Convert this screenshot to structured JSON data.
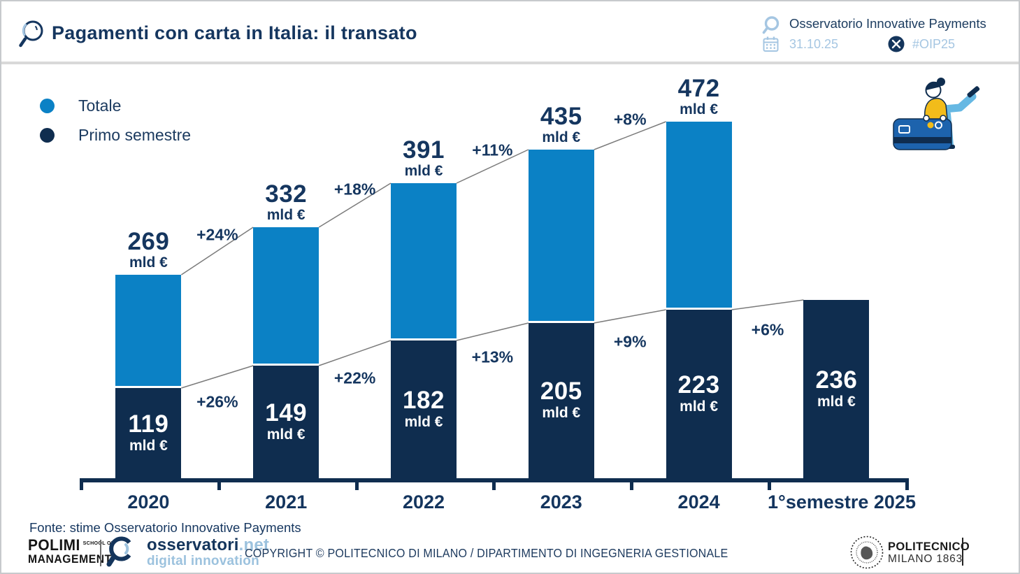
{
  "header": {
    "title": "Pagamenti con carta in Italia: il transato",
    "org": "Osservatorio Innovative Payments",
    "date": "31.10.25",
    "hashtag": "#OIP25"
  },
  "legend": {
    "items": [
      {
        "label": "Totale",
        "color": "#0b81c5"
      },
      {
        "label": "Primo semestre",
        "color": "#0f2d4f"
      }
    ]
  },
  "chart_data": {
    "type": "bar",
    "stacked": true,
    "title": "Pagamenti con carta in Italia: il transato",
    "categories": [
      "2020",
      "2021",
      "2022",
      "2023",
      "2024",
      "1°semestre 2025"
    ],
    "series": [
      {
        "name": "Totale",
        "color": "#0b81c5",
        "values": [
          269,
          332,
          391,
          435,
          472,
          null
        ]
      },
      {
        "name": "Primo semestre",
        "color": "#0f2d4f",
        "values": [
          119,
          149,
          182,
          205,
          223,
          236
        ]
      }
    ],
    "value_suffix": "mld €",
    "growth_totale": [
      "+24%",
      "+18%",
      "+11%",
      "+8%"
    ],
    "growth_primo_semestre": [
      "+26%",
      "+22%",
      "+13%",
      "+9%",
      "+6%"
    ],
    "ylim": [
      0,
      472
    ],
    "grid": false,
    "legend_position": "top-left"
  },
  "source_note": "Fonte: stime Osservatorio Innovative Payments",
  "footer": {
    "polimi": {
      "brand": "POLIMI",
      "school_of": "SCHOOL OF",
      "line2": "MANAGEMENT"
    },
    "osservatori": {
      "brand": "osservatori",
      "tld": ".net",
      "tagline": "digital innovation"
    },
    "copyright": "COPYRIGHT © POLITECNICO DI MILANO / DIPARTIMENTO DI INGEGNERIA GESTIONALE",
    "politecnico": {
      "line1": "POLITECNICO",
      "line2": "MILANO 1863"
    }
  },
  "colors": {
    "totale": "#0b81c5",
    "primo_semestre": "#0f2d4f",
    "text_navy": "#15365f",
    "light_blue_text": "#a5c6e2",
    "connector": "#7b7b7b",
    "illustration_yellow": "#f2bc1a",
    "illustration_card_blue": "#1d63ad",
    "illustration_pants_blue": "#66b8e3"
  }
}
